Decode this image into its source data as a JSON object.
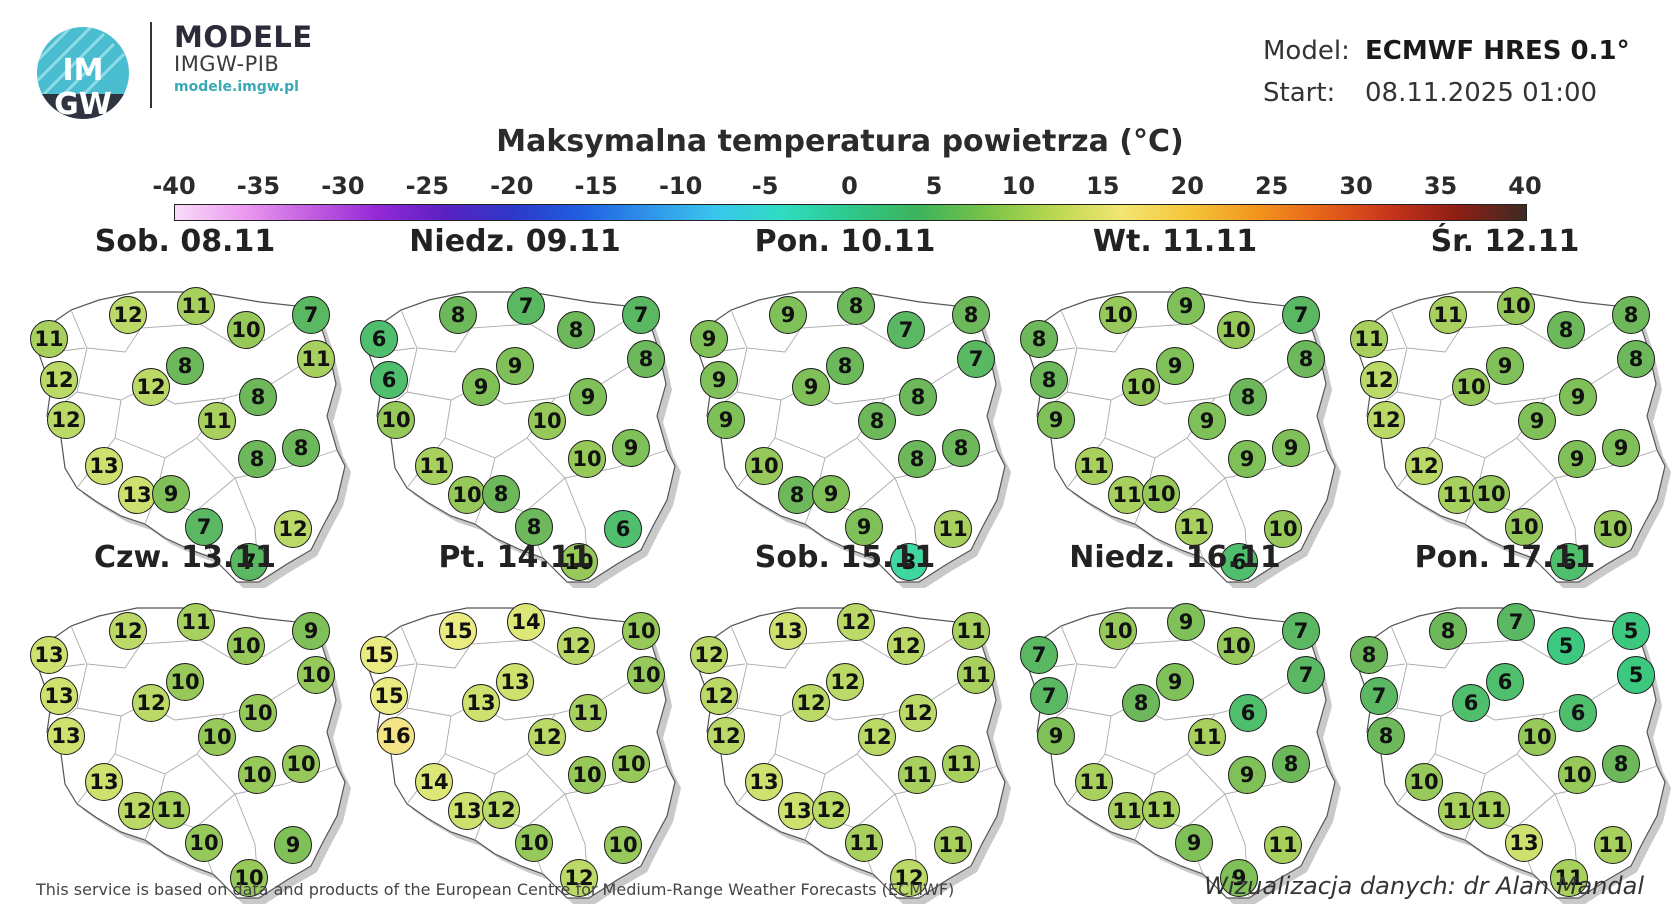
{
  "header": {
    "logo_text_top": "IM",
    "logo_text_bottom": "GW",
    "brand_title": "MODELE",
    "brand_subtitle": "IMGW-PIB",
    "brand_url": "modele.imgw.pl",
    "model_label": "Model:",
    "model_value": "ECMWF HRES 0.1°",
    "start_label": "Start:",
    "start_value": "08.11.2025 01:00"
  },
  "title": "Maksymalna temperatura powietrza (°C)",
  "colorbar": {
    "ticks": [
      "-40",
      "-35",
      "-30",
      "-25",
      "-20",
      "-15",
      "-10",
      "-5",
      "0",
      "5",
      "10",
      "15",
      "20",
      "25",
      "30",
      "35",
      "40"
    ],
    "range": [
      -40,
      40
    ]
  },
  "days": [
    {
      "label": "Sob. 08.11",
      "values": [
        12,
        11,
        11,
        10,
        7,
        8,
        11,
        12,
        12,
        8,
        12,
        11,
        8,
        8,
        13,
        13,
        9,
        7,
        12,
        7
      ]
    },
    {
      "label": "Niedz. 09.11",
      "values": [
        8,
        7,
        6,
        8,
        7,
        9,
        8,
        6,
        9,
        9,
        10,
        10,
        10,
        9,
        11,
        10,
        8,
        8,
        6,
        10
      ]
    },
    {
      "label": "Pon. 10.11",
      "values": [
        9,
        8,
        9,
        7,
        8,
        8,
        7,
        9,
        9,
        8,
        9,
        8,
        8,
        8,
        10,
        8,
        9,
        9,
        11,
        3
      ]
    },
    {
      "label": "Wt. 11.11",
      "values": [
        10,
        9,
        8,
        10,
        7,
        9,
        8,
        8,
        10,
        8,
        9,
        9,
        9,
        9,
        11,
        11,
        10,
        11,
        10,
        6
      ]
    },
    {
      "label": "Śr. 12.11",
      "values": [
        11,
        10,
        11,
        8,
        8,
        9,
        8,
        12,
        10,
        9,
        12,
        9,
        9,
        9,
        12,
        11,
        10,
        10,
        10,
        6
      ]
    },
    {
      "label": "Czw. 13.11",
      "values": [
        12,
        11,
        13,
        10,
        9,
        10,
        10,
        13,
        12,
        10,
        13,
        10,
        10,
        10,
        13,
        12,
        11,
        10,
        9,
        10
      ]
    },
    {
      "label": "Pt. 14.11",
      "values": [
        15,
        14,
        15,
        12,
        10,
        13,
        10,
        15,
        13,
        11,
        16,
        12,
        10,
        10,
        14,
        13,
        12,
        10,
        10,
        12
      ]
    },
    {
      "label": "Sob. 15.11",
      "values": [
        13,
        12,
        12,
        12,
        11,
        12,
        11,
        12,
        12,
        12,
        12,
        12,
        11,
        11,
        13,
        13,
        12,
        11,
        11,
        12
      ]
    },
    {
      "label": "Niedz. 16.11",
      "values": [
        10,
        9,
        7,
        10,
        7,
        9,
        7,
        7,
        8,
        6,
        9,
        11,
        9,
        8,
        11,
        11,
        11,
        9,
        11,
        9
      ]
    },
    {
      "label": "Pon. 17.11",
      "values": [
        8,
        7,
        8,
        5,
        5,
        6,
        5,
        7,
        6,
        6,
        8,
        10,
        10,
        8,
        10,
        11,
        11,
        13,
        11,
        11
      ]
    }
  ],
  "footer": {
    "left": "This service is based on data and products of the European Centre for Medium-Range Weather Forecasts (ECMWF)",
    "right": "Wizualizacja danych: dr Alan Mandal"
  },
  "colors": {
    "3": "#3fd6a0",
    "5": "#3cc87e",
    "6": "#4fbf6e",
    "7": "#5ab862",
    "8": "#6cb85a",
    "9": "#80c058",
    "10": "#97c95a",
    "11": "#a8d05e",
    "12": "#bad966",
    "13": "#cce16e",
    "14": "#dde778",
    "15": "#eaec82",
    "16": "#f4e486"
  }
}
